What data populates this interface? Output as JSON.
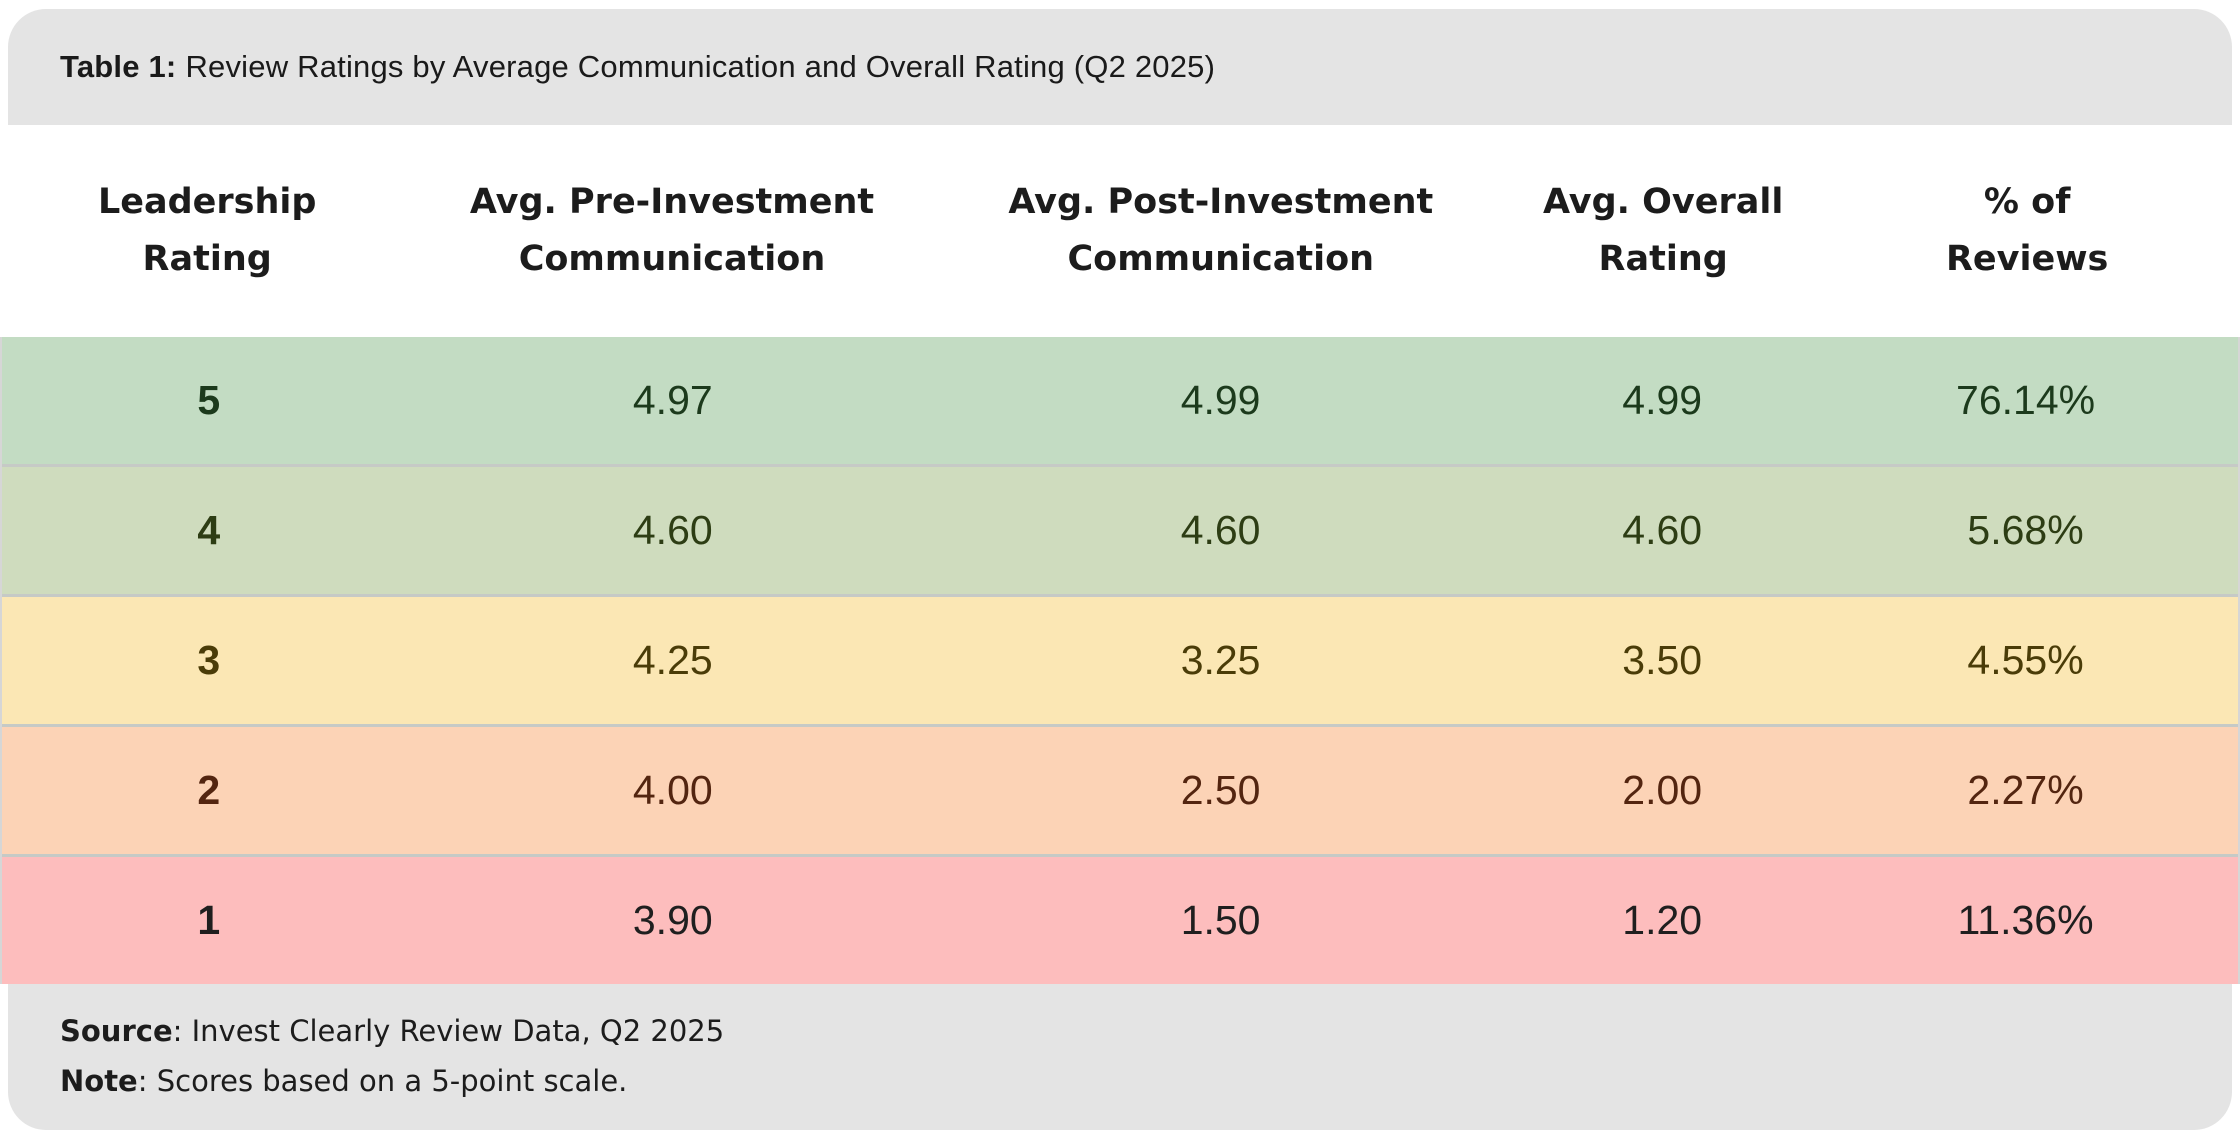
{
  "caption": {
    "label": "Table 1:",
    "text": "Review Ratings by Average Communication and Overall Rating (Q2 2025)"
  },
  "columns": [
    {
      "label": "Leadership Rating",
      "line1": "Leadership",
      "line2": "Rating"
    },
    {
      "label": "Avg. Pre-Investment Communication",
      "line1": "Avg. Pre-Investment",
      "line2": "Communication"
    },
    {
      "label": "Avg. Post-Investment Communication",
      "line1": "Avg. Post-Investment",
      "line2": "Communication"
    },
    {
      "label": "Avg. Overall Rating",
      "line1": "Avg. Overall",
      "line2": "Rating"
    },
    {
      "label": "% of Reviews",
      "line1": "% of",
      "line2": "Reviews"
    }
  ],
  "rows": [
    {
      "cells": [
        "5",
        "4.97",
        "4.99",
        "4.99",
        "76.14%"
      ],
      "bg": "#c3dcc3",
      "fg": "#1c3a1c"
    },
    {
      "cells": [
        "4",
        "4.60",
        "4.60",
        "4.60",
        "5.68%"
      ],
      "bg": "#cfdcbe",
      "fg": "#2d3d14"
    },
    {
      "cells": [
        "3",
        "4.25",
        "3.25",
        "3.50",
        "4.55%"
      ],
      "bg": "#fbe7b4",
      "fg": "#4a3c08"
    },
    {
      "cells": [
        "2",
        "4.00",
        "2.50",
        "2.00",
        "2.27%"
      ],
      "bg": "#fcd3b6",
      "fg": "#532510"
    },
    {
      "cells": [
        "1",
        "3.90",
        "1.50",
        "1.20",
        "11.36%"
      ],
      "bg": "#fdbdbd",
      "fg": "#1f1f1f"
    }
  ],
  "footer": {
    "source_label": "Source",
    "source_rest": ": Invest Clearly Review Data, Q2 2025",
    "note_label": "Note",
    "note_rest": ": Scores based on a 5-point scale."
  },
  "colors": {
    "panel_bg": "#e4e4e4",
    "row_separator": "#c6cac6",
    "table_border": "#d6d6d6"
  },
  "chart_data": {
    "type": "table",
    "title": "Table 1: Review Ratings by Average Communication and Overall Rating (Q2 2025)",
    "columns": [
      "Leadership Rating",
      "Avg. Pre-Investment Communication",
      "Avg. Post-Investment Communication",
      "Avg. Overall Rating",
      "% of Reviews"
    ],
    "rows": [
      [
        5,
        4.97,
        4.99,
        4.99,
        "76.14%"
      ],
      [
        4,
        4.6,
        4.6,
        4.6,
        "5.68%"
      ],
      [
        3,
        4.25,
        3.25,
        3.5,
        "4.55%"
      ],
      [
        2,
        4.0,
        2.5,
        2.0,
        "2.27%"
      ],
      [
        1,
        3.9,
        1.5,
        1.2,
        "11.36%"
      ]
    ],
    "row_color_scale": [
      "#c3dcc3",
      "#cfdcbe",
      "#fbe7b4",
      "#fcd3b6",
      "#fdbdbd"
    ],
    "source": "Invest Clearly Review Data, Q2 2025",
    "note": "Scores based on a 5-point scale."
  }
}
